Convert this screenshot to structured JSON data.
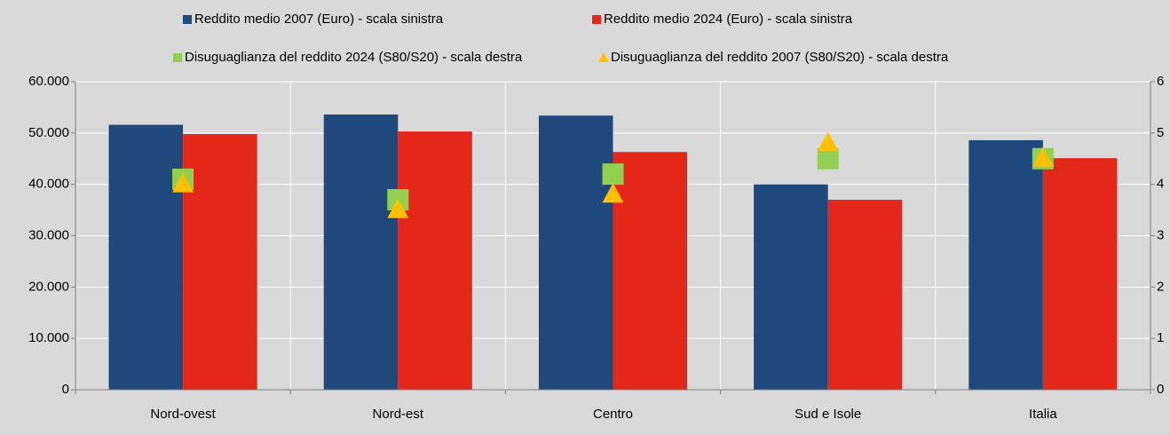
{
  "chart_data": {
    "type": "bar",
    "categories": [
      "Nord-ovest",
      "Nord-est",
      "Centro",
      "Sud e Isole",
      "Italia"
    ],
    "series": [
      {
        "name": "Reddito medio 2007 (Euro) - scala sinistra",
        "type": "bar",
        "color": "#1f497d",
        "values": [
          51600,
          53600,
          53400,
          40000,
          48600
        ]
      },
      {
        "name": "Reddito medio 2024 (Euro) - scala sinistra",
        "type": "bar",
        "color": "#e52719",
        "values": [
          49800,
          50300,
          46300,
          37000,
          45100
        ]
      },
      {
        "name": "Disuguaglianza del reddito 2024 (S80/S20) - scala destra",
        "type": "scatter",
        "marker": "square",
        "axis": "y2",
        "color": "#92d050",
        "values": [
          4.1,
          3.7,
          4.2,
          4.5,
          4.5
        ]
      },
      {
        "name": "Disuguaglianza del reddito 2007 (S80/S20) - scala destra",
        "type": "scatter",
        "marker": "triangle",
        "axis": "y2",
        "color": "#ffc000",
        "values": [
          4.0,
          3.5,
          3.8,
          4.8,
          4.5
        ]
      }
    ],
    "ylim": [
      0,
      60000
    ],
    "yticks": [
      0,
      {
        "value": 10000,
        "label": "10.000"
      },
      {
        "value": 20000,
        "label": "20.000"
      },
      {
        "value": 30000,
        "label": "30.000"
      },
      {
        "value": 40000,
        "label": "40.000"
      },
      {
        "value": 50000,
        "label": "50.000"
      },
      {
        "value": 60000,
        "label": "60.000"
      }
    ],
    "y2lim": [
      0,
      6
    ],
    "y2ticks": [
      0,
      1,
      2,
      3,
      4,
      5,
      6
    ],
    "grid": true
  }
}
